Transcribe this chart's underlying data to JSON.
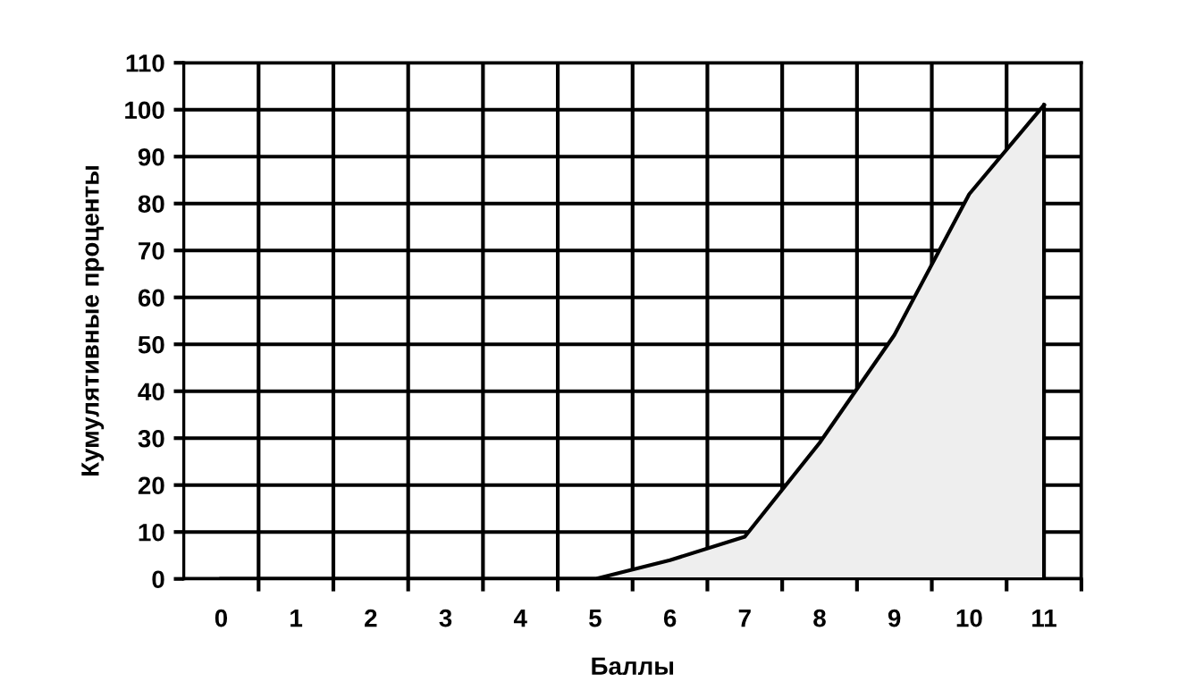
{
  "chart_data": {
    "type": "area",
    "xlabel": "Баллы",
    "ylabel": "Кумулятивные проценты",
    "categories": [
      "0",
      "1",
      "2",
      "3",
      "4",
      "5",
      "6",
      "7",
      "8",
      "9",
      "10",
      "11"
    ],
    "series": [
      {
        "color": "#eeeeee",
        "values": [
          0,
          0,
          0,
          0,
          0,
          0,
          4,
          9,
          29,
          52,
          82,
          101
        ]
      }
    ],
    "ylim": [
      0,
      110
    ],
    "yticks": [
      0,
      10,
      20,
      30,
      40,
      50,
      60,
      70,
      80,
      90,
      100,
      110
    ],
    "grid": true
  }
}
